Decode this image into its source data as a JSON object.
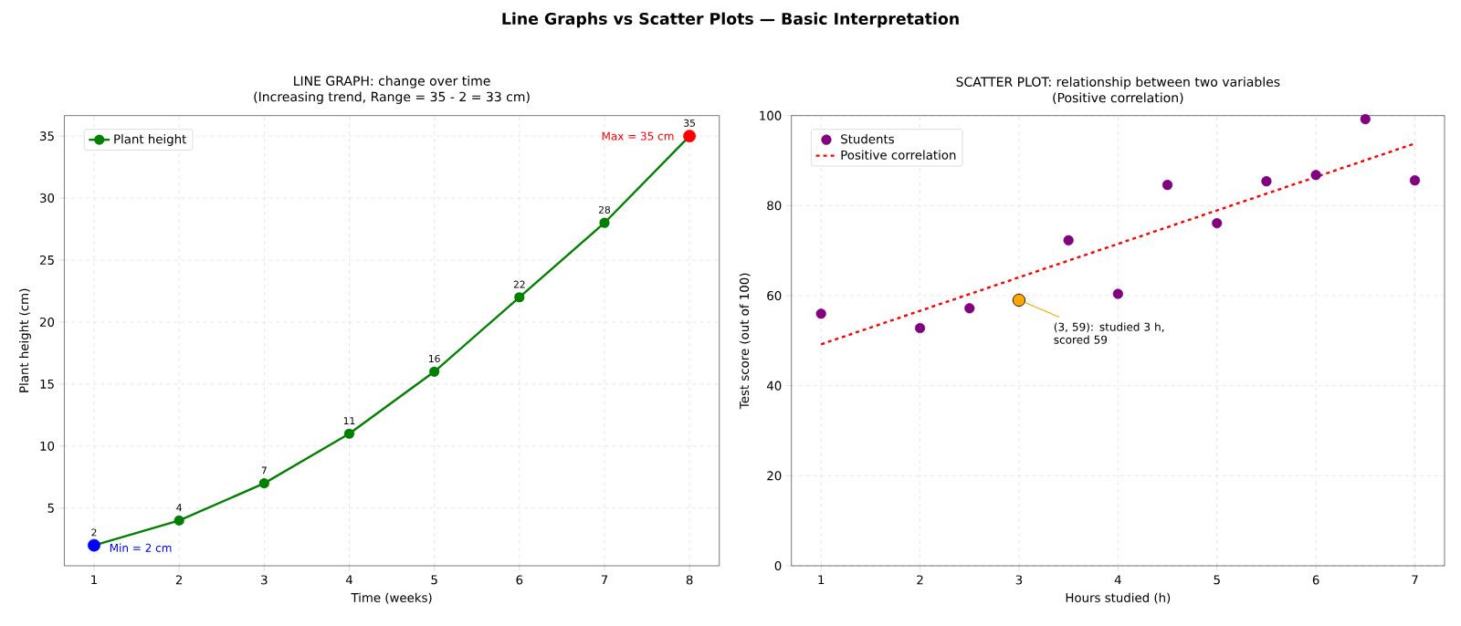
{
  "chart_data": [
    {
      "type": "line",
      "title": "LINE GRAPH: change over time",
      "subtitle": "(Increasing trend, Range = 35 - 2 = 33 cm)",
      "xlabel": "Time (weeks)",
      "ylabel": "Plant height (cm)",
      "x": [
        1,
        2,
        3,
        4,
        5,
        6,
        7,
        8
      ],
      "series": [
        {
          "name": "Plant height",
          "color": "#008000",
          "values": [
            2,
            4,
            7,
            11,
            16,
            22,
            28,
            35
          ],
          "value_labels": [
            "2",
            "4",
            "7",
            "11",
            "16",
            "22",
            "28",
            "35"
          ]
        },
        {
          "type": "scatter",
          "color": "#0000ff",
          "x": [
            1
          ],
          "values": [
            2
          ]
        },
        {
          "type": "scatter",
          "color": "#ff0000",
          "x": [
            8
          ],
          "values": [
            35
          ]
        }
      ],
      "xlim": [
        0.65,
        8.35
      ],
      "ylim": [
        0.35,
        36.65
      ],
      "xticks": [
        1,
        2,
        3,
        4,
        5,
        6,
        7,
        8
      ],
      "yticks": [
        5,
        10,
        15,
        20,
        25,
        30,
        35
      ],
      "grid": true,
      "legend": "top left",
      "marker": "circle",
      "annotations": [
        "Line Graphs vs Scatter Plots — Basic Interpretation",
        {
          "text": "Min = 2 cm",
          "x": 1,
          "y": 2
        },
        {
          "text": "Max = 35 cm",
          "x": 8,
          "y": 35
        }
      ]
    },
    {
      "type": "scatter",
      "title": "SCATTER PLOT: relationship between two variables",
      "subtitle": "(Positive correlation)",
      "xlabel": "Hours studied (h)",
      "ylabel": "Test score (out of 100)",
      "series": [
        {
          "name": "Students",
          "color": "#800080",
          "x": [
            1,
            2,
            2.5,
            3.5,
            4,
            4.5,
            5,
            5.5,
            6,
            6.5,
            7
          ],
          "values": [
            56,
            52.8,
            57.2,
            72.3,
            60.4,
            84.6,
            76.1,
            85.4,
            86.8,
            99.2,
            85.6
          ]
        },
        {
          "color": "#ffa500",
          "x": [
            3
          ],
          "values": [
            59
          ]
        },
        {
          "name": "Positive correlation",
          "type": "line",
          "line_style": "dashed",
          "marker": "none",
          "color": "#ff0000",
          "x": [
            1,
            7
          ],
          "values": [
            49.2,
            93.8
          ]
        }
      ],
      "xlim": [
        0.7,
        7.3
      ],
      "ylim": [
        0,
        100
      ],
      "xticks": [
        1,
        2,
        3,
        4,
        5,
        6,
        7
      ],
      "yticks": [
        0,
        20,
        40,
        60,
        80,
        100
      ],
      "grid": true,
      "legend": "top left",
      "marker": "circle",
      "annotations": [
        {
          "text": "(3, 59): studied 3 h, scored 59",
          "x": 3,
          "y": 59
        }
      ]
    }
  ]
}
